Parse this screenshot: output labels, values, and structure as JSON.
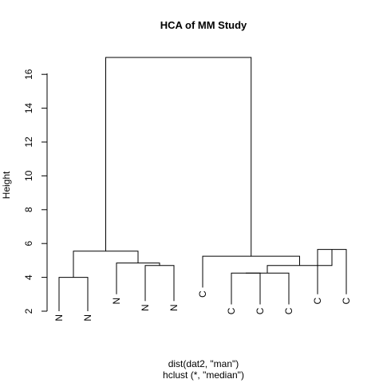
{
  "chart_data": {
    "type": "dendrogram",
    "title": "HCA of MM Study",
    "ylabel": "Height",
    "xlabel": "dist(dat2, \"man\")",
    "sub": "hclust (*, \"median\")",
    "ylim": [
      2,
      17
    ],
    "yticks": [
      2,
      4,
      6,
      8,
      10,
      12,
      14,
      16
    ],
    "leaf_label_height": 2.6,
    "leaves": [
      {
        "label": "N",
        "height": 2.0
      },
      {
        "label": "N",
        "height": 2.0
      },
      {
        "label": "N",
        "height": 3.0
      },
      {
        "label": "N",
        "height": 2.6
      },
      {
        "label": "N",
        "height": 2.6
      },
      {
        "label": "C",
        "height": 3.4
      },
      {
        "label": "C",
        "height": 2.4
      },
      {
        "label": "C",
        "height": 2.4
      },
      {
        "label": "C",
        "height": 2.4
      },
      {
        "label": "C",
        "height": 3.0
      },
      {
        "label": "C",
        "height": 3.0
      }
    ],
    "merges": [
      {
        "left": "L0",
        "right": "L1",
        "height": 4.0
      },
      {
        "left": "L3",
        "right": "L4",
        "height": 4.7
      },
      {
        "left": "L2",
        "right": "M1",
        "height": 4.85
      },
      {
        "left": "M0",
        "right": "M2",
        "height": 5.55
      },
      {
        "left": "L6",
        "right": "L7",
        "height": 4.25
      },
      {
        "left": "M4",
        "right": "L8",
        "height": 4.25
      },
      {
        "left": "L9",
        "right": "L10",
        "height": 5.65
      },
      {
        "left": "M5",
        "right": "M6",
        "height": 4.7
      },
      {
        "left": "L5",
        "right": "M7",
        "height": 5.25
      },
      {
        "left": "M3",
        "right": "M8",
        "height": 17.0
      }
    ]
  }
}
